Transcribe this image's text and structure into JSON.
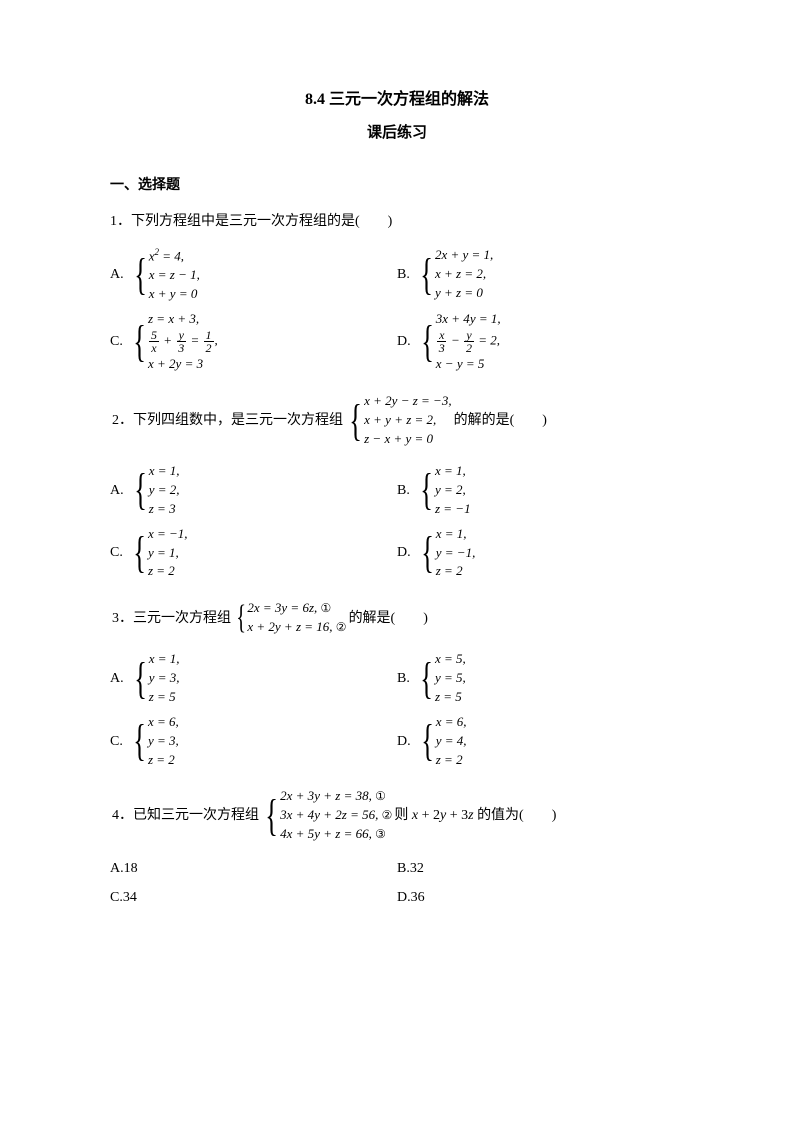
{
  "title": "8.4 三元一次方程组的解法",
  "subtitle": "课后练习",
  "section1": "一、选择题",
  "q1": {
    "stem": "1．下列方程组中是三元一次方程组的是(　　)",
    "A": {
      "label": "A.",
      "lines": [
        "x² = 4,",
        "x = z − 1,",
        "x + y = 0"
      ]
    },
    "B": {
      "label": "B.",
      "lines": [
        "2x + y = 1,",
        "x + z = 2,",
        "y + z = 0"
      ]
    },
    "C": {
      "label": "C.",
      "lines_html": true
    },
    "D": {
      "label": "D.",
      "lines_html": true
    }
  },
  "q2": {
    "stem_pre": "2．下列四组数中，是三元一次方程组",
    "system": [
      "x + 2y − z = −3,",
      "x + y + z = 2,",
      "z − x + y = 0"
    ],
    "stem_post": "的解的是(　　)",
    "A": {
      "label": "A.",
      "lines": [
        "x = 1,",
        "y = 2,",
        "z = 3"
      ]
    },
    "B": {
      "label": "B.",
      "lines": [
        "x = 1,",
        "y = 2,",
        "z = −1"
      ]
    },
    "C": {
      "label": "C.",
      "lines": [
        "x = −1,",
        "y = 1,",
        "z = 2"
      ]
    },
    "D": {
      "label": "D.",
      "lines": [
        "x = 1,",
        "y = −1,",
        "z = 2"
      ]
    }
  },
  "q3": {
    "stem_pre": "3．三元一次方程组",
    "system": [
      "2x = 3y = 6z, ①",
      "x + 2y + z = 16, ②"
    ],
    "stem_post": "的解是(　　)",
    "A": {
      "label": "A.",
      "lines": [
        "x = 1,",
        "y = 3,",
        "z = 5"
      ]
    },
    "B": {
      "label": "B.",
      "lines": [
        "x = 5,",
        "y = 5,",
        "z = 5"
      ]
    },
    "C": {
      "label": "C.",
      "lines": [
        "x = 6,",
        "y = 3,",
        "z = 2"
      ]
    },
    "D": {
      "label": "D.",
      "lines": [
        "x = 6,",
        "y = 4,",
        "z = 2"
      ]
    }
  },
  "q4": {
    "stem_pre": "4．已知三元一次方程组",
    "system": [
      "2x + 3y + z = 38, ①",
      "3x + 4y + 2z = 56, ②",
      "4x + 5y + z = 66, ③"
    ],
    "stem_post_pre": "则 ",
    "stem_expr": "x + 2y + 3z",
    "stem_post_suf": " 的值为(　　)",
    "A": "A.18",
    "B": "B.32",
    "C": "C.34",
    "D": "D.36"
  }
}
